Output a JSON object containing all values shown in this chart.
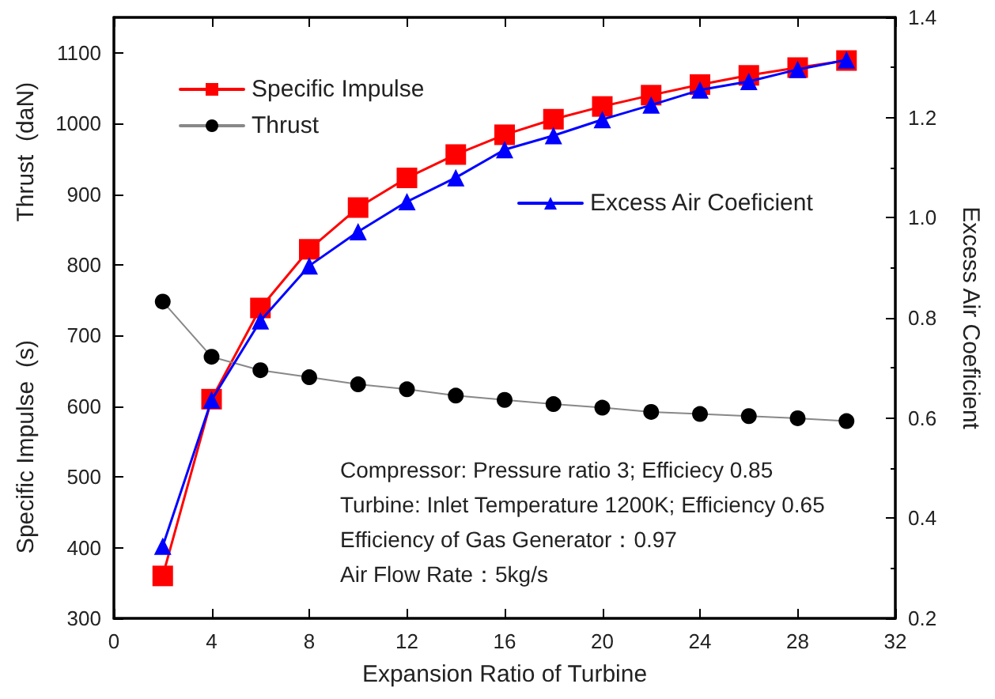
{
  "chart_data": {
    "type": "line",
    "xlabel": "Expansion Ratio of Turbine",
    "ylabel": "Specific Impulse  (s)                  Thrust  (daN)",
    "y2label": "Excess Air Coeficient",
    "x": [
      2,
      4,
      6,
      8,
      10,
      12,
      14,
      16,
      18,
      20,
      22,
      24,
      26,
      28,
      30
    ],
    "xlim": [
      0,
      32
    ],
    "xticks": [
      0,
      4,
      8,
      12,
      16,
      20,
      24,
      28,
      32
    ],
    "ylim": [
      300,
      1150
    ],
    "yticks": [
      300,
      400,
      500,
      600,
      700,
      800,
      900,
      1000,
      1100
    ],
    "y2lim": [
      0.2,
      1.4
    ],
    "y2ticks": [
      0.2,
      0.4,
      0.6,
      0.8,
      {
        "value": 1,
        "label": "1.0"
      },
      1.2,
      1.4
    ],
    "series": [
      {
        "name": "Specific Impulse",
        "color": "#ff0000",
        "marker": "square",
        "values": [
          360,
          610,
          739,
          822,
          881,
          923,
          956,
          984,
          1006,
          1024,
          1040,
          1055,
          1068,
          1079,
          1089
        ]
      },
      {
        "name": "Thrust",
        "color": "#000000",
        "marker": "circle",
        "values": [
          748,
          670,
          651,
          641,
          631,
          624,
          615,
          609,
          603,
          598,
          592,
          589,
          586,
          583,
          579
        ]
      },
      {
        "name": "Excess Air Coeficient",
        "color": "#0000ff",
        "marker": "triangle",
        "axis": "y2",
        "values": [
          0.344,
          0.636,
          0.794,
          0.904,
          0.972,
          1.032,
          1.08,
          1.136,
          1.164,
          1.196,
          1.225,
          1.255,
          1.272,
          1.296,
          1.315
        ]
      }
    ],
    "annotations": [
      "Compressor: Pressure ratio 3; Efficiecy 0.85",
      "Turbine: Inlet Temperature 1200K; Efficiency 0.65",
      "Efficiency of Gas Generator：0.97",
      "Air Flow Rate：5kg/s"
    ],
    "legend": "top left",
    "grid": false,
    "line_style": "solid"
  }
}
